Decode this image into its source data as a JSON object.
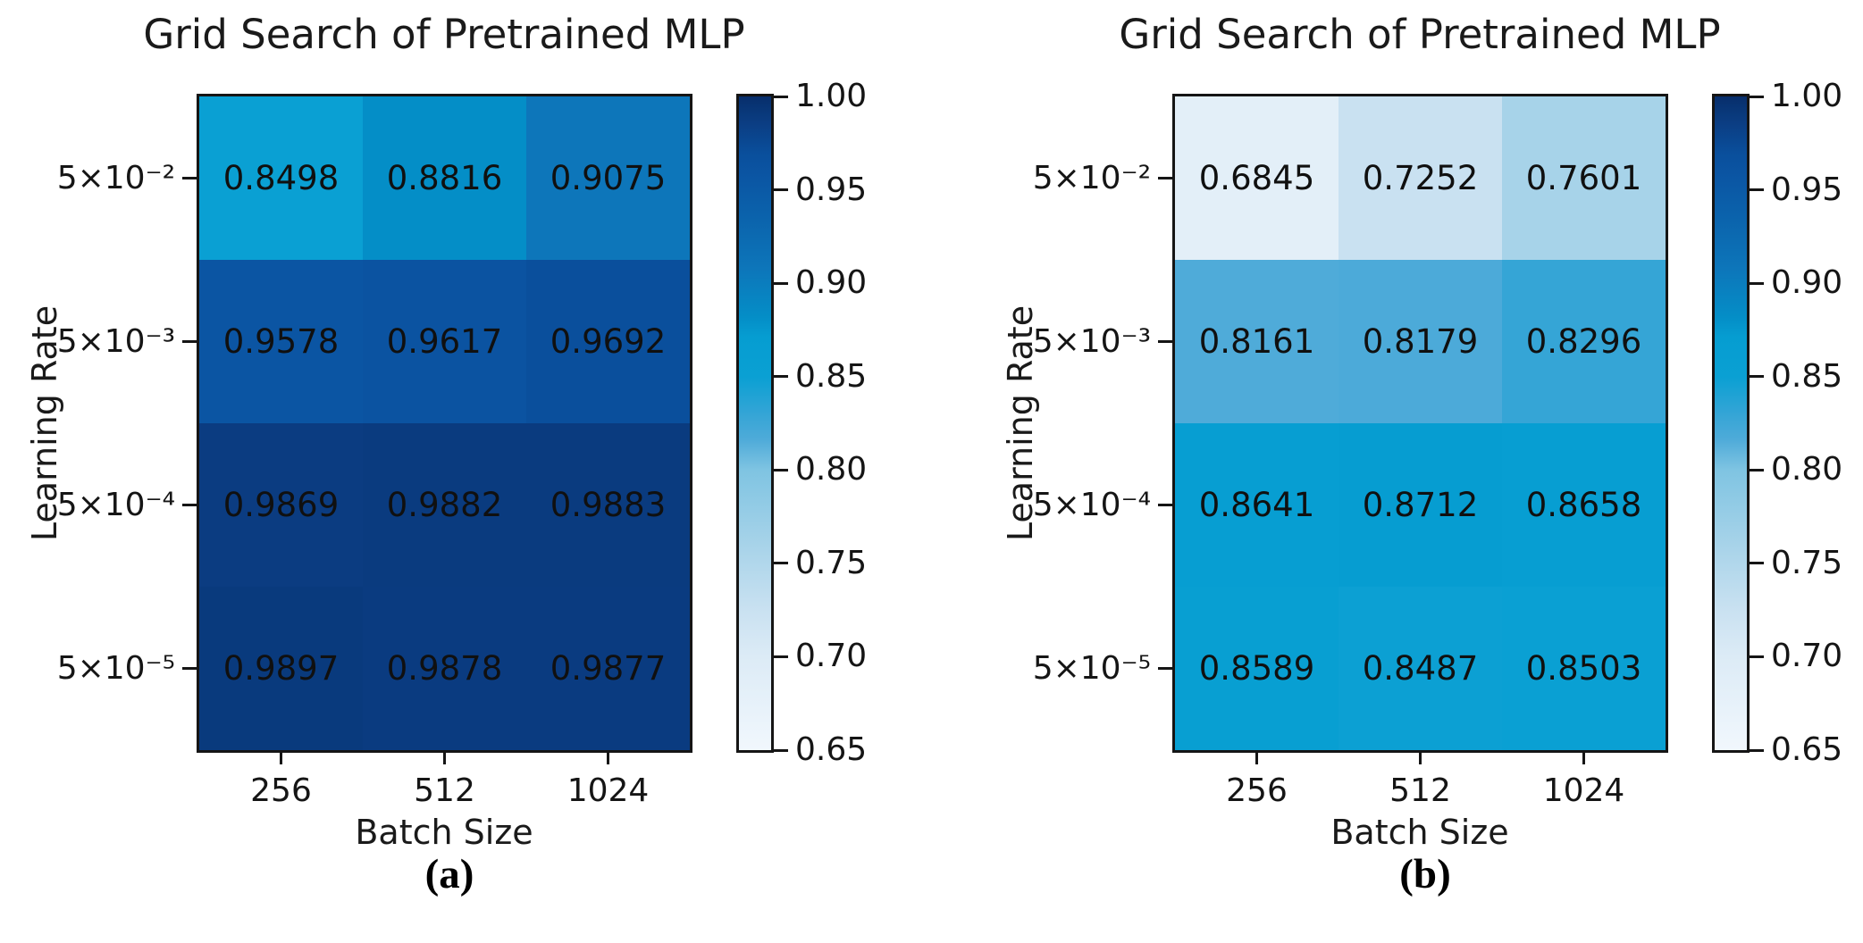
{
  "figure": {
    "background": "#ffffff",
    "text_color": "#151515",
    "panels": [
      {
        "caption": "(a)",
        "title": "Grid Search of Pretrained MLP",
        "xlabel": "Batch Size",
        "ylabel": "Learning Rate",
        "x_ticks": [
          "256",
          "512",
          "1024"
        ],
        "y_ticks": [
          "5×10⁻²",
          "5×10⁻³",
          "5×10⁻⁴",
          "5×10⁻⁵"
        ],
        "cell_labels": [
          [
            "0.8498",
            "0.8816",
            "0.9075"
          ],
          [
            "0.9578",
            "0.9617",
            "0.9692"
          ],
          [
            "0.9869",
            "0.9882",
            "0.9883"
          ],
          [
            "0.9897",
            "0.9878",
            "0.9877"
          ]
        ]
      },
      {
        "caption": "(b)",
        "title": "Grid Search of Pretrained MLP",
        "xlabel": "Batch Size",
        "ylabel": "Learning Rate",
        "x_ticks": [
          "256",
          "512",
          "1024"
        ],
        "y_ticks": [
          "5×10⁻²",
          "5×10⁻³",
          "5×10⁻⁴",
          "5×10⁻⁵"
        ],
        "cell_labels": [
          [
            "0.6845",
            "0.7252",
            "0.7601"
          ],
          [
            "0.8161",
            "0.8179",
            "0.8296"
          ],
          [
            "0.8641",
            "0.8712",
            "0.8658"
          ],
          [
            "0.8589",
            "0.8487",
            "0.8503"
          ]
        ]
      }
    ],
    "colorbar": {
      "vmin": 0.65,
      "vmax": 1.0,
      "tick_labels": [
        "1.00",
        "0.95",
        "0.90",
        "0.85",
        "0.80",
        "0.75",
        "0.70",
        "0.65"
      ],
      "colormap_stops": [
        {
          "v": 0.65,
          "c": "#f1f7fd"
        },
        {
          "v": 0.7,
          "c": "#dcebf6"
        },
        {
          "v": 0.7252,
          "c": "#c9e1f1"
        },
        {
          "v": 0.7601,
          "c": "#a7d3e9"
        },
        {
          "v": 0.8,
          "c": "#7fc4e2"
        },
        {
          "v": 0.8161,
          "c": "#4fabd9"
        },
        {
          "v": 0.8296,
          "c": "#35a5d6"
        },
        {
          "v": 0.8498,
          "c": "#0aa0d3"
        },
        {
          "v": 0.8712,
          "c": "#069dd1"
        },
        {
          "v": 0.8816,
          "c": "#048ec7"
        },
        {
          "v": 0.9075,
          "c": "#0d76ba"
        },
        {
          "v": 0.935,
          "c": "#0b63ac"
        },
        {
          "v": 0.9578,
          "c": "#0b55a3"
        },
        {
          "v": 0.9692,
          "c": "#0a4f9c"
        },
        {
          "v": 0.9869,
          "c": "#0b3c81"
        },
        {
          "v": 0.9897,
          "c": "#093a7d"
        },
        {
          "v": 1.0,
          "c": "#082e6b"
        }
      ]
    }
  },
  "chart_data": [
    {
      "type": "heatmap",
      "title": "Grid Search of Pretrained MLP",
      "xlabel": "Batch Size",
      "ylabel": "Learning Rate",
      "x_categories": [
        "256",
        "512",
        "1024"
      ],
      "y_categories": [
        "5×10⁻²",
        "5×10⁻³",
        "5×10⁻⁴",
        "5×10⁻⁵"
      ],
      "values": [
        [
          0.8498,
          0.8816,
          0.9075
        ],
        [
          0.9578,
          0.9617,
          0.9692
        ],
        [
          0.9869,
          0.9882,
          0.9883
        ],
        [
          0.9897,
          0.9878,
          0.9877
        ]
      ],
      "colorbar_range": [
        0.65,
        1.0
      ],
      "colorbar_ticks": [
        1.0,
        0.95,
        0.9,
        0.85,
        0.8,
        0.75,
        0.7,
        0.65
      ],
      "colormap": "white-to-navy blues",
      "legend_position": "colorbar-right",
      "grid": false,
      "caption": "(a)"
    },
    {
      "type": "heatmap",
      "title": "Grid Search of Pretrained MLP",
      "xlabel": "Batch Size",
      "ylabel": "Learning Rate",
      "x_categories": [
        "256",
        "512",
        "1024"
      ],
      "y_categories": [
        "5×10⁻²",
        "5×10⁻³",
        "5×10⁻⁴",
        "5×10⁻⁵"
      ],
      "values": [
        [
          0.6845,
          0.7252,
          0.7601
        ],
        [
          0.8161,
          0.8179,
          0.8296
        ],
        [
          0.8641,
          0.8712,
          0.8658
        ],
        [
          0.8589,
          0.8487,
          0.8503
        ]
      ],
      "colorbar_range": [
        0.65,
        1.0
      ],
      "colorbar_ticks": [
        1.0,
        0.95,
        0.9,
        0.85,
        0.8,
        0.75,
        0.7,
        0.65
      ],
      "colormap": "white-to-navy blues",
      "legend_position": "colorbar-right",
      "grid": false,
      "caption": "(b)"
    }
  ]
}
